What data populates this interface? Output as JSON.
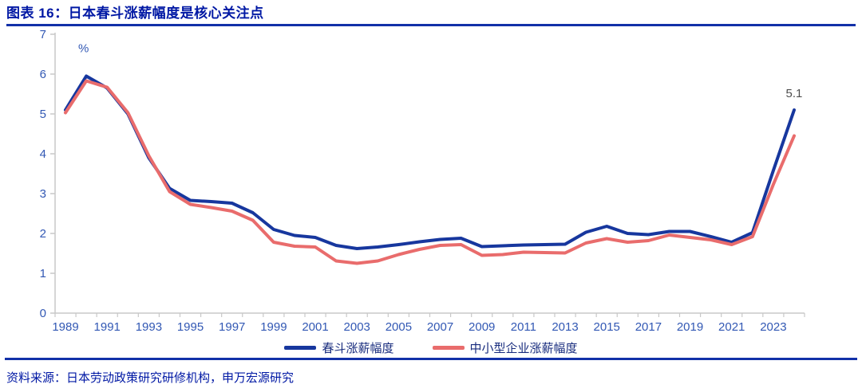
{
  "header": {
    "title": "图表 16：日本春斗涨薪幅度是核心关注点"
  },
  "footer": {
    "source": "资料来源：日本劳动政策研究研修机构，申万宏源研究"
  },
  "colors": {
    "title_blue": "#0018A4",
    "rule_blue": "#1230A8",
    "tick_label_blue": "#3258B4",
    "legend_text_navy": "#172B7D",
    "annotation_gray": "#4D4D4D",
    "axis_line_gray": "#C8C8C8",
    "series_blue": "#17379E",
    "series_red": "#E96C6C"
  },
  "chart_data": {
    "type": "line",
    "title": "日本春斗涨薪幅度是核心关注点",
    "unit_label": "%",
    "xlabel": "",
    "ylabel": "%",
    "ylim": [
      0,
      7
    ],
    "yticks": [
      0,
      1,
      2,
      3,
      4,
      5,
      6,
      7
    ],
    "grid": false,
    "legend_position": "bottom",
    "x": [
      1989,
      1990,
      1991,
      1992,
      1993,
      1994,
      1995,
      1996,
      1997,
      1998,
      1999,
      2000,
      2001,
      2002,
      2003,
      2004,
      2005,
      2006,
      2007,
      2008,
      2009,
      2010,
      2011,
      2012,
      2013,
      2014,
      2015,
      2016,
      2017,
      2018,
      2019,
      2020,
      2021,
      2022,
      2023,
      2024
    ],
    "xtick_labels": [
      "1989",
      "1991",
      "1993",
      "1995",
      "1997",
      "1999",
      "2001",
      "2003",
      "2005",
      "2007",
      "2009",
      "2011",
      "2013",
      "2015",
      "2017",
      "2019",
      "2021",
      "2023"
    ],
    "series": [
      {
        "name": "春斗涨薪幅度",
        "color": "#17379E",
        "values": [
          5.1,
          5.95,
          5.65,
          5.0,
          3.9,
          3.13,
          2.83,
          2.8,
          2.76,
          2.52,
          2.1,
          1.95,
          1.9,
          1.7,
          1.62,
          1.66,
          1.72,
          1.79,
          1.85,
          1.88,
          1.67,
          1.69,
          1.71,
          1.72,
          1.73,
          2.03,
          2.18,
          2.0,
          1.97,
          2.05,
          2.05,
          1.92,
          1.78,
          2.02,
          3.58,
          5.1
        ]
      },
      {
        "name": "中小型企业涨薪幅度",
        "color": "#E96C6C",
        "values": [
          5.03,
          5.83,
          5.67,
          5.03,
          3.95,
          3.05,
          2.73,
          2.65,
          2.56,
          2.33,
          1.78,
          1.68,
          1.66,
          1.31,
          1.25,
          1.31,
          1.47,
          1.6,
          1.7,
          1.72,
          1.45,
          1.47,
          1.53,
          1.52,
          1.51,
          1.76,
          1.87,
          1.78,
          1.82,
          1.96,
          1.9,
          1.84,
          1.72,
          1.92,
          3.23,
          4.45
        ]
      }
    ],
    "annotation": {
      "text": "5.1",
      "x": 2024,
      "y": 5.1
    }
  }
}
